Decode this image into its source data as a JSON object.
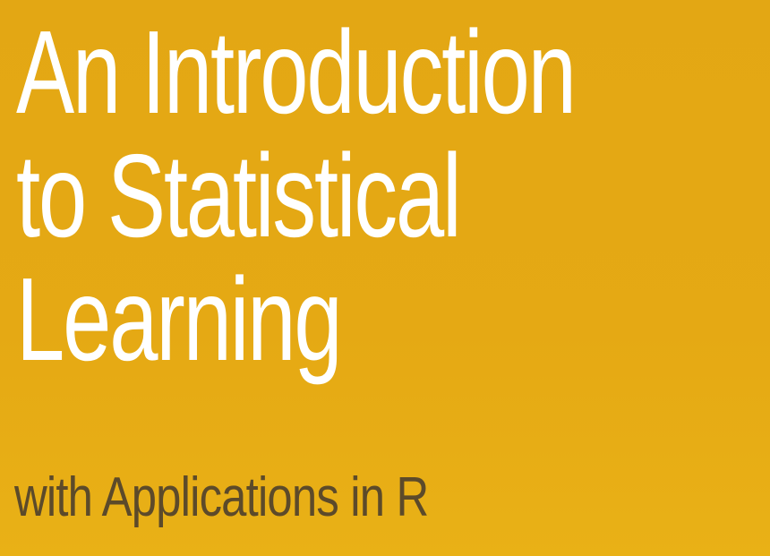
{
  "cover": {
    "title_lines": [
      "An Introduction",
      "to Statistical",
      "Learning"
    ],
    "subtitle": "with Applications in R",
    "colors": {
      "background": "#e4a815",
      "title": "#ffffff",
      "subtitle": "#5c4a2a"
    }
  }
}
